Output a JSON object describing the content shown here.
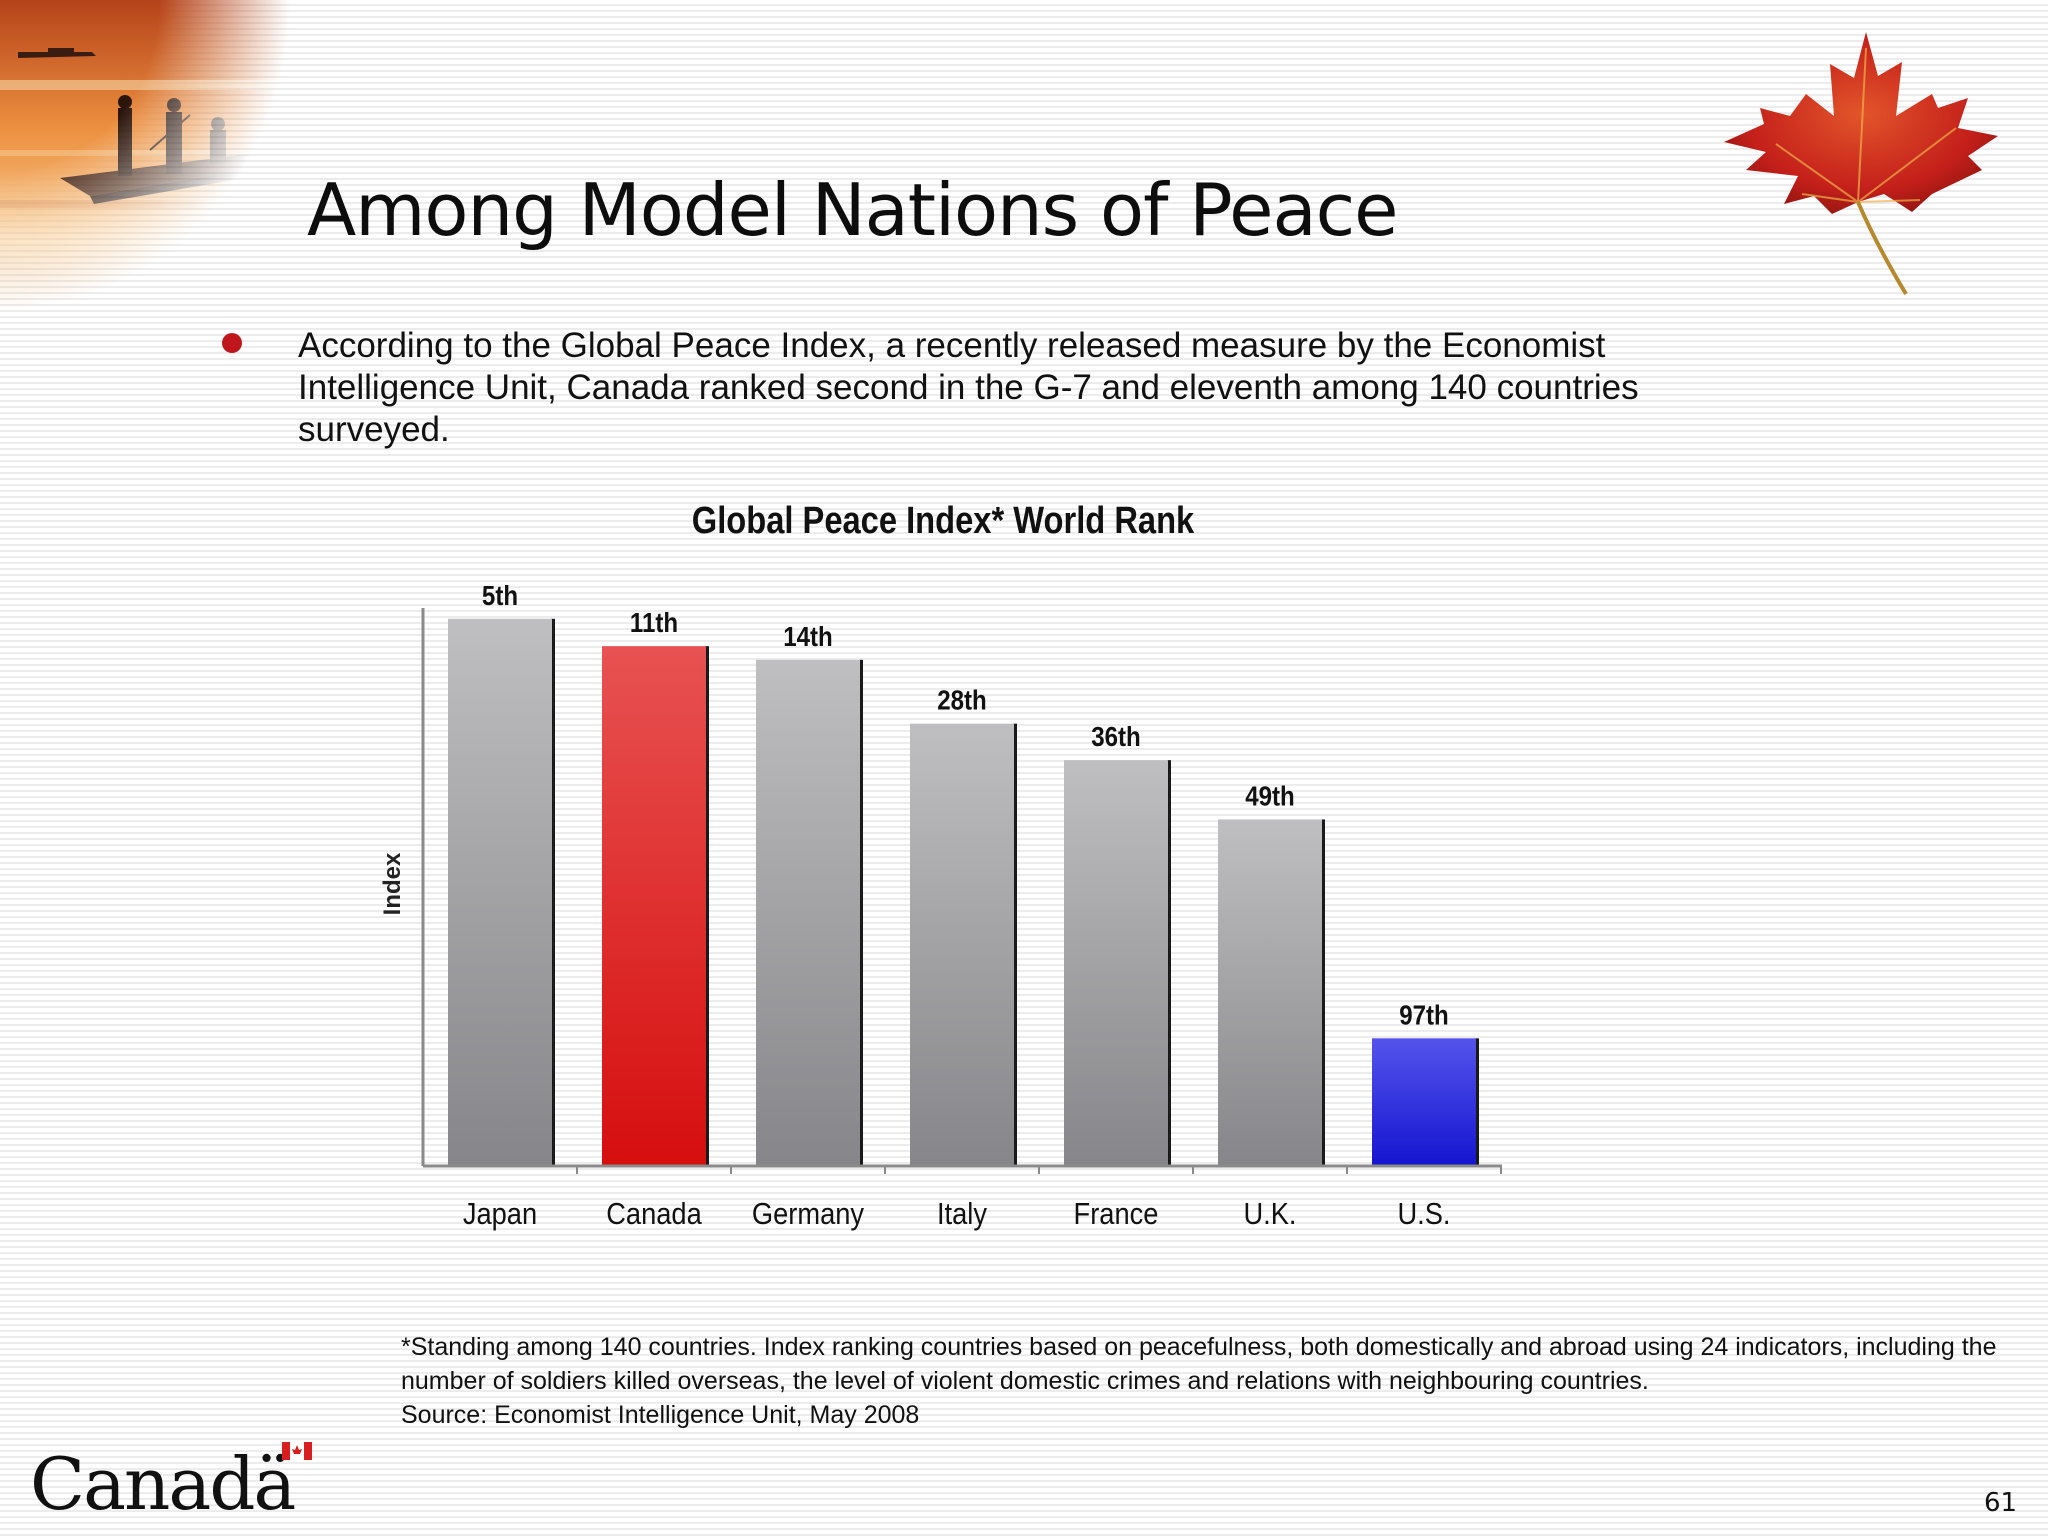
{
  "slide": {
    "title": "Among Model Nations of Peace",
    "bullet_text": "According to the Global Peace Index, a recently released measure by the  Economist Intelligence Unit, Canada ranked second in the G-7 and eleventh among 140 countries surveyed.",
    "footnote_lines": [
      "*Standing among 140 countries. Index ranking countries based on peacefulness, both domestically and abroad using 24 indicators, including the",
      "number of soldiers killed overseas, the level of violent domestic crimes and relations with neighbouring countries.",
      "Source: Economist Intelligence Unit, May 2008"
    ],
    "logo_text": "Canadä",
    "page_number": "61",
    "icons": [
      "lake-photo",
      "maple-leaf-icon",
      "canada-flag-icon",
      "bullet-icon"
    ],
    "bullet_color": "#c0171d"
  },
  "chart_data": {
    "type": "bar",
    "title": "Global Peace Index* World Rank",
    "ylabel": "Index",
    "xlabel": "",
    "categories": [
      "Japan",
      "Canada",
      "Germany",
      "Italy",
      "France",
      "U.K.",
      "U.S."
    ],
    "values": [
      5,
      11,
      14,
      28,
      36,
      49,
      97
    ],
    "data_labels": [
      "5th",
      "11th",
      "14th",
      "28th",
      "36th",
      "49th",
      "97th"
    ],
    "value_meaning": "world rank (lower is better); bar height decreases as rank increases",
    "rank_axis_range": [
      0,
      125
    ],
    "grid": false,
    "legend": "none",
    "colors": [
      "#9b9b9d",
      "#e01b1b",
      "#9b9b9d",
      "#9b9b9d",
      "#9b9b9d",
      "#9b9b9d",
      "#2424d8"
    ]
  }
}
